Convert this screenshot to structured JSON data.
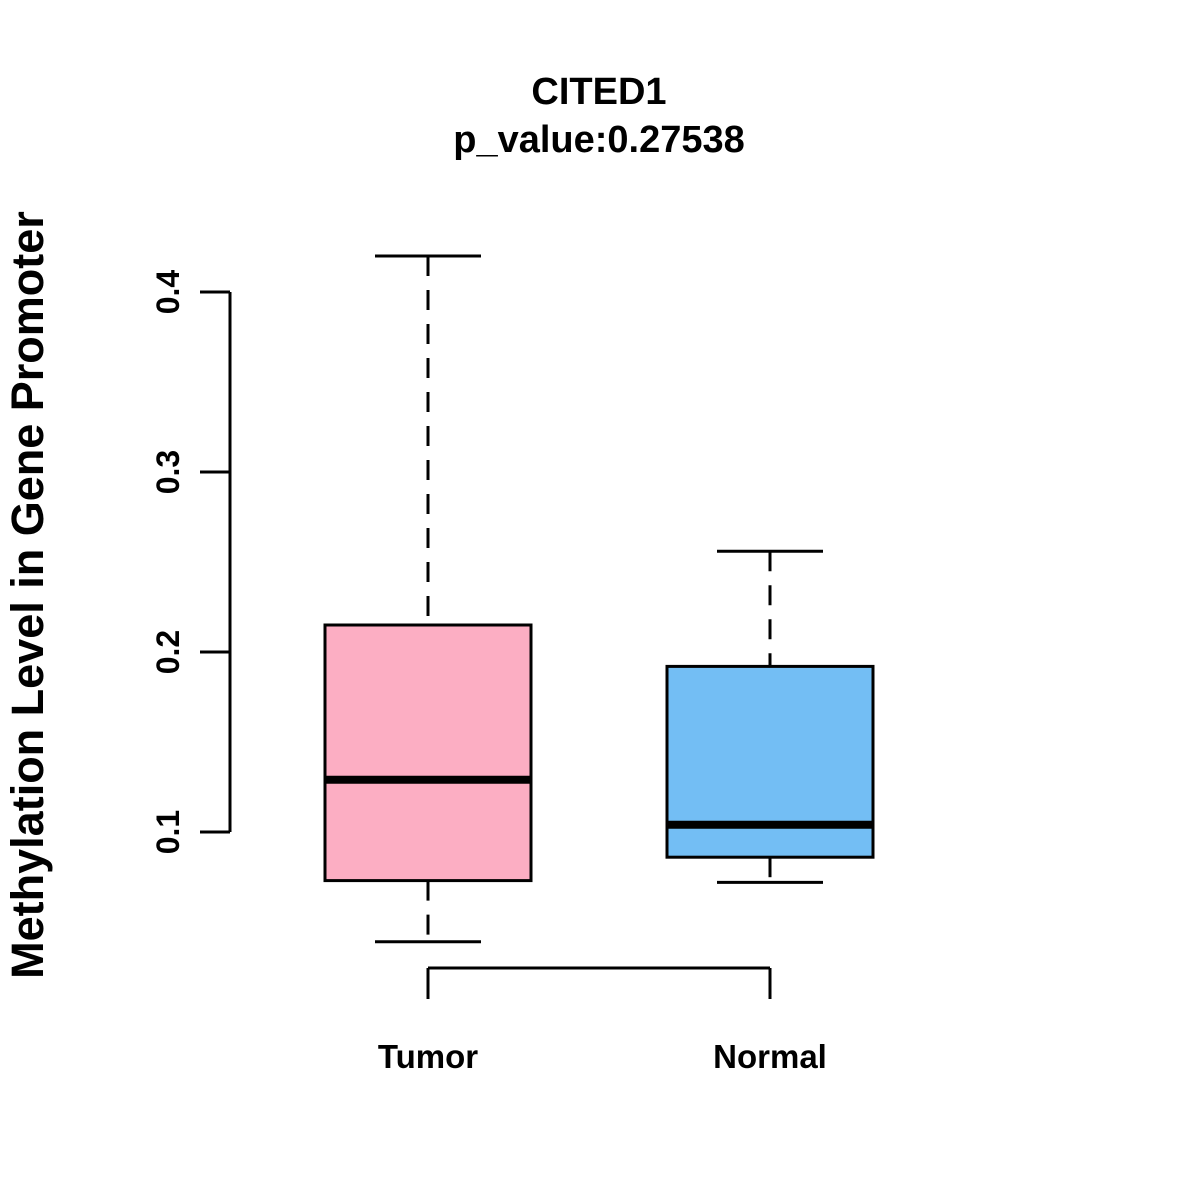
{
  "chart_data": {
    "type": "boxplot",
    "title": "CITED1",
    "subtitle": "p_value:0.27538",
    "p_value": "0.27538",
    "ylabel": "Methylation Level in Gene Promoter",
    "categories": [
      "Tumor",
      "Normal"
    ],
    "y_tick_values": [
      0.1,
      0.2,
      0.3,
      0.4
    ],
    "y_tick_labels": [
      "0.1",
      "0.2",
      "0.3",
      "0.4"
    ],
    "ylim": [
      0.1,
      0.4
    ],
    "grid": "off",
    "legend": "none",
    "series": [
      {
        "name": "Tumor",
        "fill_color": "#FCAEC3",
        "lower_whisker": 0.039,
        "q1": 0.073,
        "median": 0.129,
        "q3": 0.215,
        "upper_whisker": 0.42
      },
      {
        "name": "Normal",
        "fill_color": "#73BEF4",
        "lower_whisker": 0.072,
        "q1": 0.086,
        "median": 0.104,
        "q3": 0.192,
        "upper_whisker": 0.256
      }
    ],
    "colors": {
      "box_border": "#000000",
      "median_line": "#000000",
      "axis": "#000000",
      "text": "#000000",
      "background": "#FFFFFF"
    }
  }
}
